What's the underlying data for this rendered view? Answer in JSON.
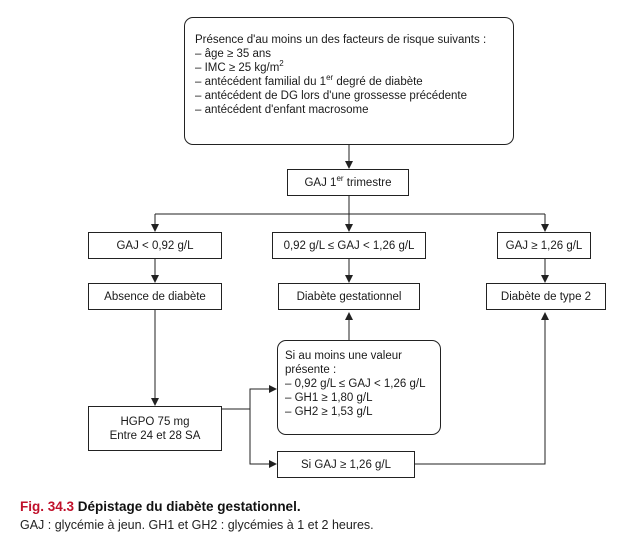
{
  "risk": {
    "title": "Présence d'au moins un des facteurs de risque suivants :",
    "items": [
      "– âge ≥ 35 ans",
      "– IMC ≥ 25 kg/m",
      "– antécédent familial du 1",
      "– antécédent de DG lors d'une grossesse précédente",
      "– antécédent d'enfant macrosome"
    ],
    "imc_sup": "2",
    "fam_sup": "er",
    "fam_tail": " degré de diabète"
  },
  "gaj": {
    "label": "GAJ 1",
    "sup": "er",
    "tail": " trimestre"
  },
  "branches": {
    "low": "GAJ < 0,92 g/L",
    "mid": "0,92 g/L ≤ GAJ < 1,26 g/L",
    "high": "GAJ ≥ 1,26 g/L"
  },
  "outcomes": {
    "none": "Absence de diabète",
    "gest": "Diabète gestationnel",
    "type2": "Diabète de type 2"
  },
  "hgpo": {
    "line1": "HGPO 75 mg",
    "line2": "Entre 24 et 28 SA"
  },
  "criteria": {
    "title1": "Si au moins une valeur",
    "title2": "présente :",
    "items": [
      "– 0,92 g/L ≤ GAJ < 1,26 g/L",
      "– GH1 ≥ 1,80 g/L",
      "– GH2 ≥ 1,53 g/L"
    ]
  },
  "si_gaj": "Si GAJ ≥ 1,26 g/L",
  "caption": {
    "fig": "Fig. 34.3",
    "title": " Dépistage du diabète gestationnel.",
    "legend": "GAJ : glycémie à jeun. GH1 et GH2 : glycémies à 1 et 2 heures."
  }
}
